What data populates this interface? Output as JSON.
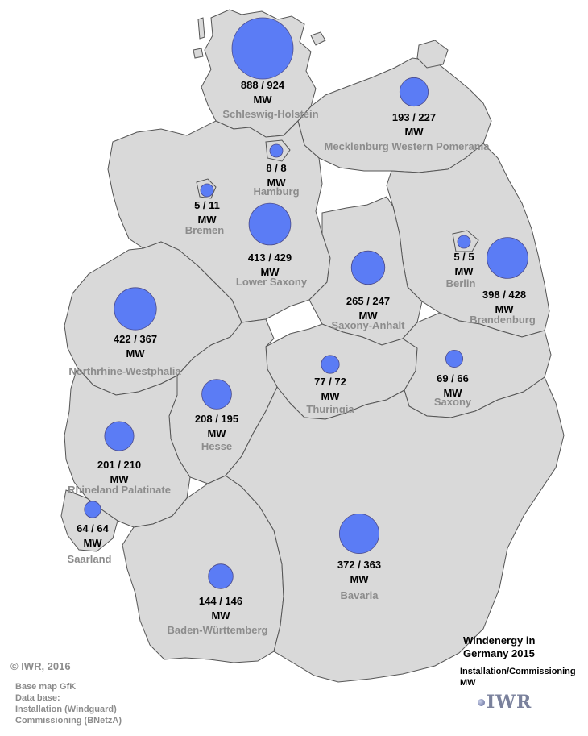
{
  "colors": {
    "land": "#d9d9d9",
    "bubble": "#5b7cf5",
    "label_grey": "#8c8c8c"
  },
  "map": {
    "states": [
      {
        "name": "Schleswig-Holstein",
        "value": "888 / 924",
        "installation_mw": 888,
        "commissioning_mw": 924,
        "unit": "MW"
      },
      {
        "name": "Mecklenburg Western Pomerania",
        "value": "193 / 227",
        "installation_mw": 193,
        "commissioning_mw": 227,
        "unit": "MW"
      },
      {
        "name": "Hamburg",
        "value": "8 / 8",
        "installation_mw": 8,
        "commissioning_mw": 8,
        "unit": "MW"
      },
      {
        "name": "Bremen",
        "value": "5 / 11",
        "installation_mw": 5,
        "commissioning_mw": 11,
        "unit": "MW"
      },
      {
        "name": "Lower Saxony",
        "value": "413 / 429",
        "installation_mw": 413,
        "commissioning_mw": 429,
        "unit": "MW"
      },
      {
        "name": "Berlin",
        "value": "5 / 5",
        "installation_mw": 5,
        "commissioning_mw": 5,
        "unit": "MW"
      },
      {
        "name": "Brandenburg",
        "value": "398 / 428",
        "installation_mw": 398,
        "commissioning_mw": 428,
        "unit": "MW"
      },
      {
        "name": "Saxony-Anhalt",
        "value": "265 / 247",
        "installation_mw": 265,
        "commissioning_mw": 247,
        "unit": "MW"
      },
      {
        "name": "Northrhine-Westphalia",
        "value": "422 / 367",
        "installation_mw": 422,
        "commissioning_mw": 367,
        "unit": "MW"
      },
      {
        "name": "Thuringia",
        "value": "77 / 72",
        "installation_mw": 77,
        "commissioning_mw": 72,
        "unit": "MW"
      },
      {
        "name": "Saxony",
        "value": "69 / 66",
        "installation_mw": 69,
        "commissioning_mw": 66,
        "unit": "MW"
      },
      {
        "name": "Hesse",
        "value": "208 / 195",
        "installation_mw": 208,
        "commissioning_mw": 195,
        "unit": "MW"
      },
      {
        "name": "Rhineland Palatinate",
        "value": "201 / 210",
        "installation_mw": 201,
        "commissioning_mw": 210,
        "unit": "MW"
      },
      {
        "name": "Saarland",
        "value": "64 / 64",
        "installation_mw": 64,
        "commissioning_mw": 64,
        "unit": "MW"
      },
      {
        "name": "Bavaria",
        "value": "372 / 363",
        "installation_mw": 372,
        "commissioning_mw": 363,
        "unit": "MW"
      },
      {
        "name": "Baden-Württemberg",
        "value": "144 / 146",
        "installation_mw": 144,
        "commissioning_mw": 146,
        "unit": "MW"
      }
    ]
  },
  "legend": {
    "title_line1": "Windenergy in",
    "title_line2": "Germany 2015",
    "subtitle_line1": "Installation/Commissioning",
    "subtitle_line2": "MW"
  },
  "footer": {
    "copyright": "© IWR, 2016",
    "source_line1": "Base map GfK",
    "source_line2": "Data base:",
    "source_line3": "Installation (Windguard)",
    "source_line4": "Commissioning (BNetzA)",
    "logo_text": "IWR"
  }
}
